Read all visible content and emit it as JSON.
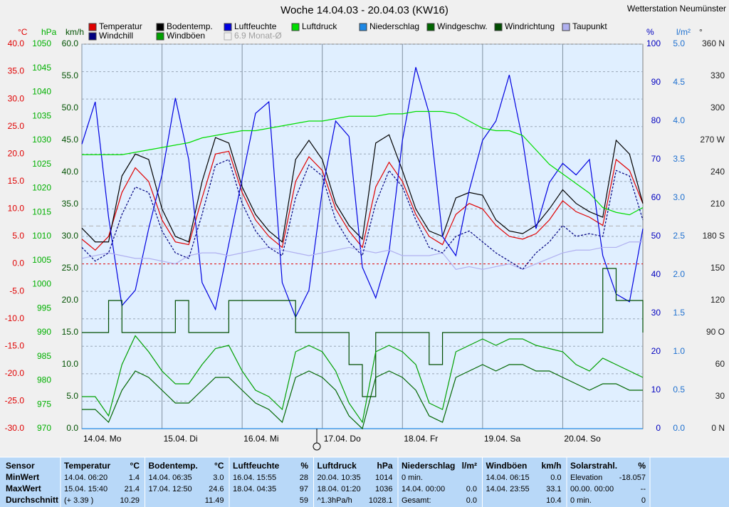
{
  "chart_data": {
    "type": "line",
    "title": "Woche 14.04.03 - 20.04.03 (KW16)",
    "station": "Wetterstation Neumünster",
    "x": [
      0,
      4,
      8,
      12,
      16,
      20,
      24,
      28,
      32,
      36,
      40,
      44,
      48,
      52,
      56,
      60,
      64,
      68,
      72,
      76,
      80,
      84,
      88,
      92,
      96,
      100,
      104,
      108,
      112,
      116,
      120,
      124,
      128,
      132,
      136,
      140,
      144,
      148,
      152,
      156,
      160,
      164,
      168
    ],
    "xlim": [
      0,
      168
    ],
    "xticks": [
      {
        "value": 0,
        "label": "14.04.  Mo"
      },
      {
        "value": 24,
        "label": "15.04.  Di"
      },
      {
        "value": 48,
        "label": "16.04.  Mi"
      },
      {
        "value": 72,
        "label": "17.04.  Do"
      },
      {
        "value": 96,
        "label": "18.04.  Fr"
      },
      {
        "value": 120,
        "label": "19.04.  Sa"
      },
      {
        "value": 144,
        "label": "20.04.  So"
      }
    ],
    "grid": true,
    "axes": {
      "temp": {
        "unit": "°C",
        "color": "#e00000",
        "lim": [
          -30,
          40
        ],
        "ticks": [
          {
            "value": 40,
            "label": "40.0"
          },
          {
            "value": 35,
            "label": "35.0"
          },
          {
            "value": 30,
            "label": "30.0"
          },
          {
            "value": 25,
            "label": "25.0"
          },
          {
            "value": 20,
            "label": "20.0"
          },
          {
            "value": 15,
            "label": "15.0"
          },
          {
            "value": 10,
            "label": "10.0"
          },
          {
            "value": 5,
            "label": "5.0"
          },
          {
            "value": 0,
            "label": "0.0"
          },
          {
            "value": -5,
            "label": "-5.0"
          },
          {
            "value": -10,
            "label": "-10.0"
          },
          {
            "value": -15,
            "label": "-15.0"
          },
          {
            "value": -20,
            "label": "-20.0"
          },
          {
            "value": -25,
            "label": "-25.0"
          },
          {
            "value": -30,
            "label": "-30.0"
          }
        ]
      },
      "pressure": {
        "unit": "hPa",
        "color": "#00b000",
        "lim": [
          970,
          1050
        ],
        "ticks": [
          1050,
          1045,
          1040,
          1035,
          1030,
          1025,
          1020,
          1015,
          1010,
          1005,
          1000,
          995,
          990,
          985,
          980,
          975,
          970
        ]
      },
      "wind": {
        "unit": "km/h",
        "color": "#005000",
        "lim": [
          0,
          60
        ],
        "ticks": [
          {
            "value": 60,
            "label": "60.0"
          },
          {
            "value": 55,
            "label": "55.0"
          },
          {
            "value": 50,
            "label": "50.0"
          },
          {
            "value": 45,
            "label": "45.0"
          },
          {
            "value": 40,
            "label": "40.0"
          },
          {
            "value": 35,
            "label": "35.0"
          },
          {
            "value": 30,
            "label": "30.0"
          },
          {
            "value": 25,
            "label": "25.0"
          },
          {
            "value": 20,
            "label": "20.0"
          },
          {
            "value": 15,
            "label": "15.0"
          },
          {
            "value": 10,
            "label": "10.0"
          },
          {
            "value": 5,
            "label": "5.0"
          },
          {
            "value": 0,
            "label": "0.0"
          }
        ]
      },
      "humidity": {
        "unit": "%",
        "color": "#0000c0",
        "lim": [
          0,
          100
        ],
        "ticks": [
          100,
          90,
          80,
          70,
          60,
          50,
          40,
          30,
          20,
          10,
          0
        ]
      },
      "rain": {
        "unit": "l/m²",
        "color": "#1e70d0",
        "lim": [
          0,
          5
        ],
        "ticks": [
          {
            "value": 5,
            "label": "5.0"
          },
          {
            "value": 4.5,
            "label": "4.5"
          },
          {
            "value": 4,
            "label": "4.0"
          },
          {
            "value": 3.5,
            "label": "3.5"
          },
          {
            "value": 3,
            "label": "3.0"
          },
          {
            "value": 2.5,
            "label": "2.5"
          },
          {
            "value": 2,
            "label": "2.0"
          },
          {
            "value": 1.5,
            "label": "1.5"
          },
          {
            "value": 1,
            "label": "1.0"
          },
          {
            "value": 0.5,
            "label": "0.5"
          },
          {
            "value": 0,
            "label": "0.0"
          }
        ]
      },
      "direction": {
        "unit": "°",
        "color": "#202020",
        "lim": [
          0,
          360
        ],
        "ticks": [
          {
            "value": 360,
            "label": "360 N"
          },
          330,
          300,
          {
            "value": 270,
            "label": "270 W"
          },
          240,
          210,
          {
            "value": 180,
            "label": "180 S"
          },
          150,
          120,
          {
            "value": 90,
            "label": "90 O"
          },
          60,
          30,
          {
            "value": 0,
            "label": "0 N"
          }
        ]
      }
    },
    "monthly_mean": {
      "label": "6.9 Monat-Ø",
      "value": 6.9,
      "axis": "temp",
      "color": "#b0b0b0"
    },
    "series": [
      {
        "name": "Temperatur",
        "color": "#e00000",
        "axis": "temp",
        "values": [
          4.5,
          2.5,
          5,
          13,
          17.5,
          15,
          8,
          4,
          3.5,
          12,
          20,
          20.5,
          13,
          8,
          5,
          3,
          15,
          19.5,
          17,
          10,
          6,
          3,
          14,
          18.5,
          15,
          9,
          5,
          3.5,
          9,
          11,
          10,
          7,
          5,
          4.5,
          5.5,
          8,
          11.5,
          9.5,
          8.5,
          7,
          19,
          17,
          11
        ]
      },
      {
        "name": "Bodentemp.",
        "color": "#000000",
        "axis": "temp",
        "values": [
          6.5,
          4,
          4,
          16,
          20,
          19,
          10,
          5,
          4,
          15,
          23,
          22,
          14,
          9,
          6,
          4,
          19,
          22.5,
          19,
          11,
          7,
          4.5,
          22,
          23.5,
          17,
          10,
          6,
          5,
          12,
          13,
          12.5,
          8,
          6,
          5.5,
          7,
          10,
          13.5,
          11,
          9.5,
          8.5,
          22.5,
          20,
          11
        ]
      },
      {
        "name": "Luftfeuchte",
        "color": "#0000e0",
        "axis": "humidity",
        "values": [
          74,
          85,
          55,
          32,
          36,
          52,
          66,
          86,
          70,
          38,
          31,
          48,
          65,
          82,
          85,
          38,
          29,
          36,
          62,
          80,
          76,
          42,
          34,
          46,
          75,
          94,
          82,
          50,
          45,
          62,
          75,
          80,
          92,
          75,
          52,
          64,
          69,
          66,
          70,
          45,
          35,
          33,
          52
        ]
      },
      {
        "name": "Luftdruck",
        "color": "#00dd00",
        "axis": "pressure",
        "values": [
          1027,
          1027,
          1027,
          1027,
          1027.5,
          1028,
          1028.5,
          1029,
          1029.5,
          1030.5,
          1031,
          1031.5,
          1032,
          1032,
          1032.5,
          1033,
          1033.5,
          1034,
          1034,
          1034.5,
          1035,
          1035,
          1035,
          1035.5,
          1035.5,
          1036,
          1036,
          1036,
          1035.5,
          1034,
          1032.5,
          1032,
          1032,
          1031,
          1028,
          1025,
          1023,
          1021,
          1019,
          1016,
          1015,
          1014.5,
          1016
        ]
      },
      {
        "name": "Niederschlag",
        "color": "#1e88e5",
        "axis": "rain",
        "values": [
          0,
          0,
          0,
          0,
          0,
          0,
          0,
          0,
          0,
          0,
          0,
          0,
          0,
          0,
          0,
          0,
          0,
          0,
          0,
          0,
          0,
          0,
          0,
          0,
          0,
          0,
          0,
          0,
          0,
          0,
          0,
          0,
          0,
          0,
          0,
          0,
          0,
          0,
          0,
          0,
          0,
          0,
          0
        ]
      },
      {
        "name": "Windgeschw.",
        "color": "#006600",
        "axis": "wind",
        "values": [
          3,
          3,
          1,
          6,
          9,
          8,
          6,
          4,
          4,
          6,
          8,
          8,
          6,
          4,
          3,
          1,
          8,
          9,
          8,
          6,
          2,
          0,
          8,
          9,
          8,
          6,
          2,
          1,
          8,
          9,
          10,
          9,
          10,
          10,
          9,
          9,
          8,
          7,
          6,
          7,
          7,
          6,
          6
        ]
      },
      {
        "name": "Windrichtung",
        "color": "#004d00",
        "axis": "direction",
        "step": true,
        "values": [
          90,
          90,
          120,
          90,
          90,
          90,
          90,
          120,
          90,
          90,
          90,
          120,
          120,
          120,
          120,
          120,
          90,
          90,
          90,
          90,
          60,
          30,
          90,
          90,
          90,
          90,
          60,
          90,
          90,
          90,
          90,
          90,
          90,
          90,
          90,
          90,
          90,
          90,
          90,
          150,
          120,
          120,
          90
        ]
      },
      {
        "name": "Taupunkt",
        "color": "#b0b0f0",
        "axis": "temp",
        "values": [
          1,
          1.5,
          2,
          1.5,
          1,
          1,
          0.5,
          0,
          1.5,
          2,
          2,
          1.5,
          2,
          2.5,
          3,
          2.5,
          2,
          1.5,
          2,
          2.5,
          3,
          2.5,
          2,
          2.5,
          1.5,
          1.5,
          1.5,
          2,
          -1,
          -0.5,
          -1,
          -0.5,
          0,
          -1,
          0,
          1,
          2,
          2.5,
          2.5,
          3,
          3,
          4,
          4
        ]
      },
      {
        "name": "Windchill",
        "color": "#000080",
        "axis": "temp",
        "dashed": true,
        "values": [
          3,
          0.5,
          2,
          9,
          14,
          13,
          6,
          2,
          1,
          9,
          18,
          19,
          11,
          6,
          3,
          1.5,
          12,
          18,
          16,
          8,
          4,
          1.5,
          11,
          17,
          14,
          8,
          3,
          2,
          5,
          6,
          4,
          2,
          0.5,
          -1,
          2,
          4,
          7,
          5,
          5.5,
          5,
          17,
          16,
          8
        ]
      },
      {
        "name": "Windböen",
        "color": "#00a000",
        "axis": "wind",
        "values": [
          5,
          5,
          2,
          10,
          14.5,
          12,
          9,
          7,
          7,
          10,
          12.5,
          13,
          9,
          6,
          5,
          3,
          12,
          13,
          12,
          9,
          4,
          1,
          12,
          13,
          12,
          10,
          4,
          3,
          12,
          13,
          14,
          13,
          14,
          14,
          13,
          12.5,
          12,
          10,
          9,
          11,
          10,
          9,
          8
        ]
      }
    ]
  },
  "summary": {
    "row_labels": [
      "Sensor",
      "MinWert",
      "MaxWert",
      "Durchschnitt"
    ],
    "columns": [
      {
        "name": "Temperatur",
        "unit": "°C",
        "cells": [
          {
            "l": "14.04.  06:20",
            "r": "1.4"
          },
          {
            "l": "15.04.  15:40",
            "r": "21.4"
          },
          {
            "l": "(+ 3.39 )",
            "r": "10.29"
          }
        ]
      },
      {
        "name": "Bodentemp.",
        "unit": "°C",
        "cells": [
          {
            "l": "14.04.  06:35",
            "r": "3.0"
          },
          {
            "l": "17.04.  12:50",
            "r": "24.6"
          },
          {
            "r": "11.49"
          }
        ]
      },
      {
        "name": "Luftfeuchte",
        "unit": "%",
        "cells": [
          {
            "l": "16.04.  15:55",
            "r": "28"
          },
          {
            "l": "18.04.  04:35",
            "r": "97"
          },
          {
            "r": "59"
          }
        ]
      },
      {
        "name": "Luftdruck",
        "unit": "hPa",
        "cells": [
          {
            "l": "20.04.  10:35",
            "r": "1014"
          },
          {
            "l": "18.04.  01:20",
            "r": "1036"
          },
          {
            "l": "^1.3hPa/h",
            "r": "1028.1"
          }
        ]
      },
      {
        "name": "Niederschlag",
        "unit": "l/m²",
        "cells": [
          {
            "l": "0 min."
          },
          {
            "l": "14.04.  00:00",
            "r": "0.0"
          },
          {
            "l": "Gesamt:",
            "r": "0.0"
          }
        ]
      },
      {
        "name": "Windböen",
        "unit": "km/h",
        "cells": [
          {
            "l": "14.04.  06:15",
            "r": "0.0"
          },
          {
            "l": "14.04.  23:55",
            "r": "33.1"
          },
          {
            "r": "10.4"
          }
        ]
      },
      {
        "name": "Solarstrahl.",
        "unit": "%",
        "cells": [
          {
            "l": "Elevation",
            "r": "-18.057"
          },
          {
            "l": "00.00.  00:00",
            "r": "--"
          },
          {
            "l": "0 min.",
            "r": "0"
          }
        ]
      }
    ]
  }
}
